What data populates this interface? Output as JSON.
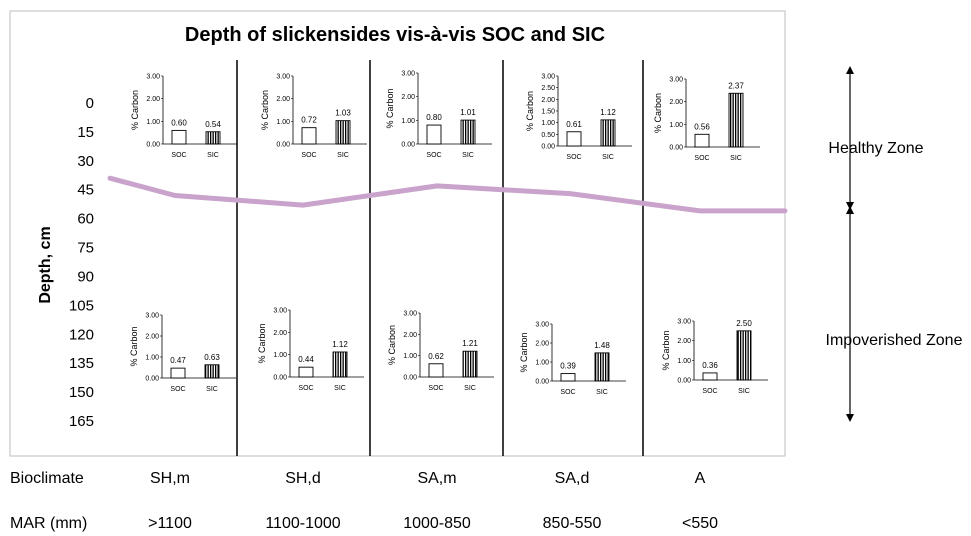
{
  "chart_data": {
    "type": "bar",
    "title": "Depth of slickensides vis-à-vis SOC and SIC",
    "y_axis": {
      "label": "Depth, cm",
      "ticks": [
        "0",
        "15",
        "30",
        "45",
        "60",
        "75",
        "90",
        "105",
        "120",
        "135",
        "150",
        "165"
      ],
      "range": [
        0,
        165
      ],
      "inverted": true
    },
    "zones": [
      {
        "name": "Healthy Zone"
      },
      {
        "name": "Impoverished Zone"
      }
    ],
    "bioclimate": {
      "label": "Bioclimate",
      "values": [
        "SH,m",
        "SH,d",
        "SA,m",
        "SA,d",
        "A"
      ]
    },
    "mar": {
      "label": "MAR (mm)",
      "values": [
        ">1100",
        "1100-1000",
        "1000-850",
        "850-550",
        "<550"
      ]
    },
    "slickenside_depth_line": {
      "x": [
        "start",
        "SH,m",
        "SH,d",
        "SA,m",
        "SA,d",
        "A",
        "end"
      ],
      "y": [
        39,
        48,
        53,
        43,
        47,
        56,
        56
      ]
    },
    "inset_ylabel": "% Carbon",
    "inset_ticks": [
      "0.00",
      "1.00",
      "2.00",
      "3.00"
    ],
    "inset_ticks_fine": [
      "0.00",
      "0.50",
      "1.00",
      "1.50",
      "2.00",
      "2.50",
      "3.00"
    ],
    "categories": [
      "SOC",
      "SIC"
    ],
    "insets_top": [
      {
        "values": [
          0.6,
          0.54
        ],
        "labels": [
          "0.60",
          "0.54"
        ]
      },
      {
        "values": [
          0.72,
          1.03
        ],
        "labels": [
          "0.72",
          "1.03"
        ]
      },
      {
        "values": [
          0.8,
          1.01
        ],
        "labels": [
          "0.80",
          "1.01"
        ]
      },
      {
        "values": [
          0.61,
          1.12
        ],
        "labels": [
          "0.61",
          "1.12"
        ]
      },
      {
        "values": [
          0.56,
          2.37
        ],
        "labels": [
          "0.56",
          "2.37"
        ]
      }
    ],
    "insets_bottom": [
      {
        "values": [
          0.47,
          0.63
        ],
        "labels": [
          "0.47",
          "0.63"
        ]
      },
      {
        "values": [
          0.44,
          1.12
        ],
        "labels": [
          "0.44",
          "1.12"
        ]
      },
      {
        "values": [
          0.62,
          1.21
        ],
        "labels": [
          "0.62",
          "1.21"
        ]
      },
      {
        "values": [
          0.39,
          1.48
        ],
        "labels": [
          "0.39",
          "1.48"
        ]
      },
      {
        "values": [
          0.36,
          2.5
        ],
        "labels": [
          "0.36",
          "2.50"
        ]
      }
    ]
  },
  "colors": {
    "line": "#c9a3cb",
    "text": "#000000",
    "frame": "#bdbdbd"
  }
}
